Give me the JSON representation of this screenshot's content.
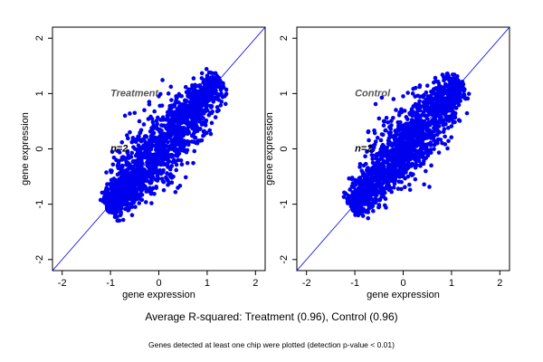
{
  "figure": {
    "caption": "Average R-squared: Treatment (0.96), Control (0.96)",
    "footnote": "Genes detected at least one chip were plotted (detection p-value < 0.01)"
  },
  "colors": {
    "points": "#0000ee",
    "reference_line": "#0000ee",
    "panel_label": "#555555",
    "axis": "#000000"
  },
  "chart_data": [
    {
      "type": "scatter",
      "panel_label": "Treatment",
      "n_label": "n=2",
      "xlabel": "gene expression",
      "ylabel": "gene expression",
      "xlim": [
        -2.2,
        2.2
      ],
      "ylim": [
        -2.2,
        2.2
      ],
      "xticks": [
        -2,
        -1,
        0,
        1,
        2
      ],
      "yticks": [
        -2,
        -1,
        0,
        1,
        2
      ],
      "reference_line": "y = x",
      "cloud": {
        "x_range": [
          -1.1,
          1.25
        ],
        "y_range": [
          -1.05,
          1.25
        ],
        "r_squared": 0.96
      },
      "outliers": [
        [
          -0.7,
          0.6
        ],
        [
          -0.5,
          0.65
        ],
        [
          -0.3,
          0.7
        ],
        [
          0.0,
          0.95
        ],
        [
          0.2,
          1.0
        ],
        [
          0.4,
          0.95
        ],
        [
          0.6,
          1.0
        ],
        [
          -0.6,
          0.3
        ],
        [
          -0.2,
          0.85
        ],
        [
          0.3,
          -0.5
        ],
        [
          -0.4,
          -0.9
        ],
        [
          0.1,
          -0.6
        ]
      ]
    },
    {
      "type": "scatter",
      "panel_label": "Control",
      "n_label": "n=2",
      "xlabel": "gene expression",
      "ylabel": "gene expression",
      "xlim": [
        -2.2,
        2.2
      ],
      "ylim": [
        -2.2,
        2.2
      ],
      "xticks": [
        -2,
        -1,
        0,
        1,
        2
      ],
      "yticks": [
        -2,
        -1,
        0,
        1,
        2
      ],
      "reference_line": "y = x",
      "cloud": {
        "x_range": [
          -1.05,
          1.2
        ],
        "y_range": [
          -1.05,
          1.2
        ],
        "r_squared": 0.96
      },
      "outliers": [
        [
          -0.2,
          0.9
        ],
        [
          0.0,
          0.95
        ],
        [
          0.2,
          1.0
        ],
        [
          0.4,
          0.95
        ],
        [
          -0.5,
          0.55
        ],
        [
          -0.4,
          0.5
        ],
        [
          0.1,
          -0.5
        ],
        [
          -0.3,
          -0.6
        ],
        [
          0.5,
          0.2
        ],
        [
          -0.7,
          -0.4
        ],
        [
          0.25,
          -0.55
        ]
      ]
    }
  ]
}
